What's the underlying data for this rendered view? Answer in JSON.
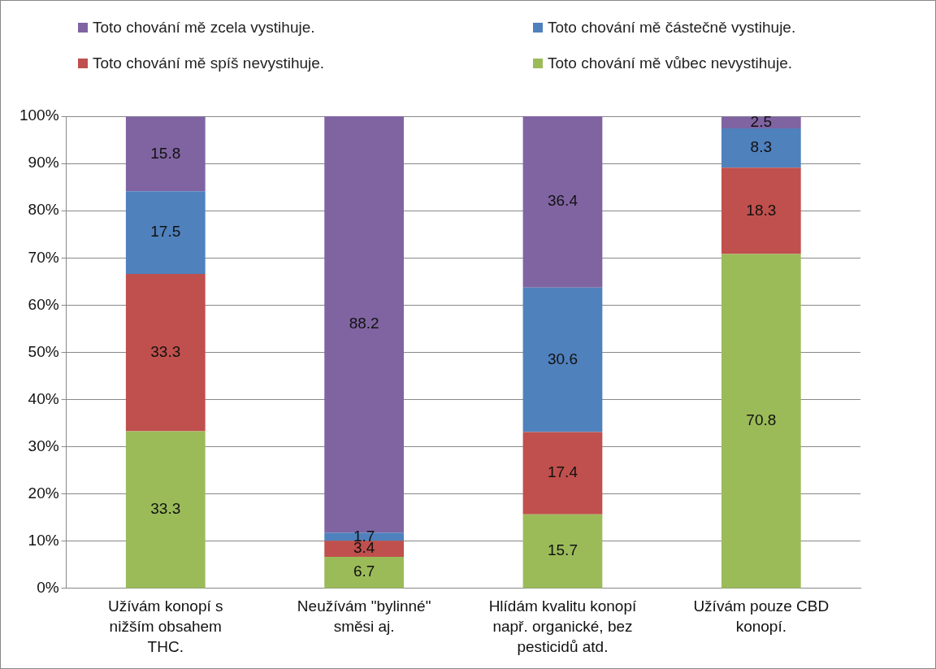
{
  "chart_data": {
    "type": "bar",
    "stacked": true,
    "categories": [
      "Užívám konopí s nižším obsahem THC.",
      "Neužívám \"bylinné\" směsi aj.",
      "Hlídám kvalitu konopí např. organické, bez pesticidů atd.",
      "Užívám pouze CBD konopí."
    ],
    "series": [
      {
        "name": "Toto chování mě vůbec nevystihuje.",
        "color": "#9bbb59",
        "values": [
          33.3,
          6.7,
          15.7,
          70.8
        ]
      },
      {
        "name": "Toto chování mě spíš nevystihuje.",
        "color": "#c0504d",
        "values": [
          33.3,
          3.4,
          17.4,
          18.3
        ]
      },
      {
        "name": "Toto chování mě částečně vystihuje.",
        "color": "#4f81bd",
        "values": [
          17.5,
          1.7,
          30.6,
          8.3
        ]
      },
      {
        "name": "Toto chování mě zcela vystihuje.",
        "color": "#8064a2",
        "values": [
          15.8,
          88.2,
          36.4,
          2.5
        ]
      }
    ],
    "ylim": [
      0,
      100
    ],
    "yticks": [
      {
        "value": 0,
        "label": "0%"
      },
      {
        "value": 10,
        "label": "10%"
      },
      {
        "value": 20,
        "label": "20%"
      },
      {
        "value": 30,
        "label": "30%"
      },
      {
        "value": 40,
        "label": "40%"
      },
      {
        "value": 50,
        "label": "50%"
      },
      {
        "value": 60,
        "label": "60%"
      },
      {
        "value": 70,
        "label": "70%"
      },
      {
        "value": 80,
        "label": "80%"
      },
      {
        "value": 90,
        "label": "90%"
      },
      {
        "value": 100,
        "label": "100%"
      }
    ],
    "grid": "y",
    "legend": "top",
    "data_labels": true
  }
}
